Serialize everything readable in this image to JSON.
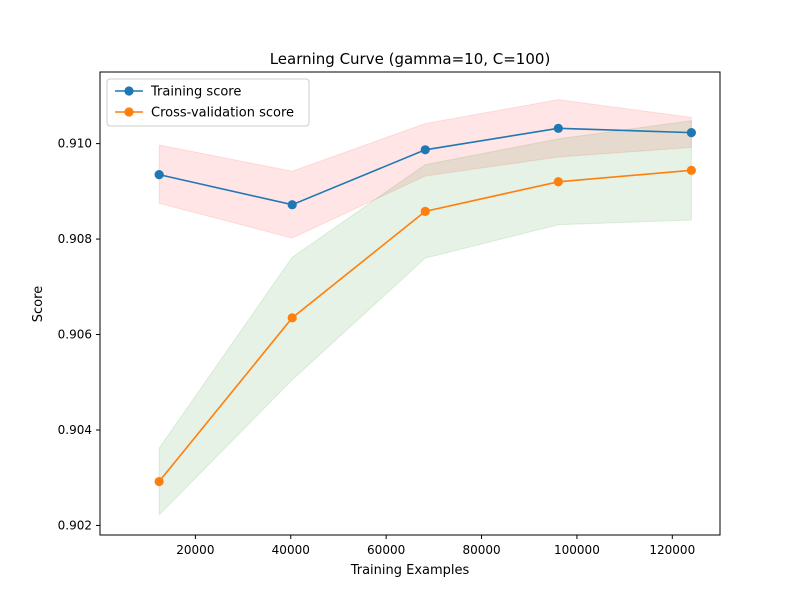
{
  "chart_data": {
    "type": "line",
    "title": "Learning Curve (gamma=10, C=100)",
    "xlabel": "Training Examples",
    "ylabel": "Score",
    "xlim": [
      0,
      130000
    ],
    "ylim": [
      0.9018,
      0.9115
    ],
    "xticks": [
      20000,
      40000,
      60000,
      80000,
      100000,
      120000
    ],
    "xtick_labels": [
      "20000",
      "40000",
      "60000",
      "80000",
      "100000",
      "120000"
    ],
    "yticks": [
      0.902,
      0.904,
      0.906,
      0.908,
      0.91
    ],
    "ytick_labels": [
      "0.902",
      "0.904",
      "0.906",
      "0.908",
      "0.910"
    ],
    "grid": false,
    "legend_position": "upper-left",
    "x": [
      12400,
      40300,
      68200,
      96100,
      124000
    ],
    "series": [
      {
        "name": "Training score",
        "color": "#1f77b4",
        "band_color": "#ff0000",
        "values": [
          0.90935,
          0.90872,
          0.90987,
          0.91032,
          0.91023
        ],
        "band_lower": [
          0.90875,
          0.90802,
          0.90932,
          0.90972,
          0.90992
        ],
        "band_upper": [
          0.90997,
          0.90942,
          0.91042,
          0.91092,
          0.91055
        ]
      },
      {
        "name": "Cross-validation score",
        "color": "#ff7f0e",
        "band_color": "#008000",
        "values": [
          0.90292,
          0.90635,
          0.90858,
          0.9092,
          0.90944
        ],
        "band_lower": [
          0.90222,
          0.90505,
          0.9076,
          0.9083,
          0.9084
        ],
        "band_upper": [
          0.90362,
          0.90762,
          0.90956,
          0.9101,
          0.91048
        ]
      }
    ]
  }
}
